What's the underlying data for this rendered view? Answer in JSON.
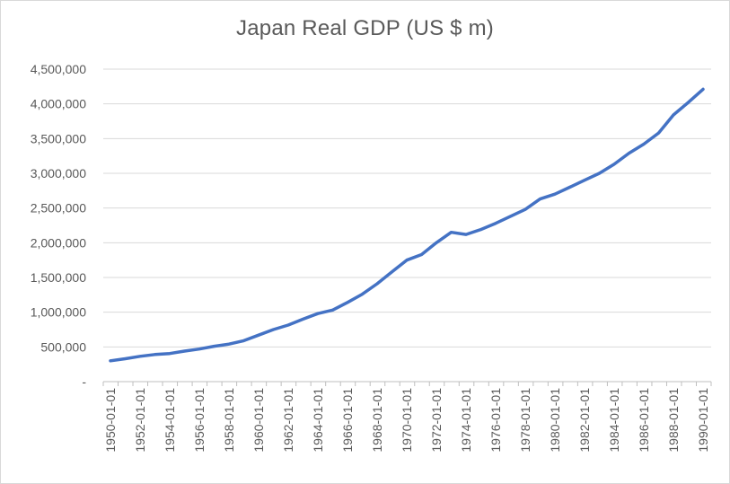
{
  "chart_data": {
    "type": "line",
    "title": "Japan Real GDP (US $ m)",
    "xlabel": "",
    "ylabel": "",
    "ylim": [
      0,
      4500000
    ],
    "grid": true,
    "legend": "none",
    "line_color": "#4472c4",
    "grid_color": "#d9d9d9",
    "axis_color": "#bfbfbf",
    "text_color": "#595959",
    "y_ticks": [
      {
        "value": 0,
        "label": "-"
      },
      {
        "value": 500000,
        "label": "500,000"
      },
      {
        "value": 1000000,
        "label": "1,000,000"
      },
      {
        "value": 1500000,
        "label": "1,500,000"
      },
      {
        "value": 2000000,
        "label": "2,000,000"
      },
      {
        "value": 2500000,
        "label": "2,500,000"
      },
      {
        "value": 3000000,
        "label": "3,000,000"
      },
      {
        "value": 3500000,
        "label": "3,500,000"
      },
      {
        "value": 4000000,
        "label": "4,000,000"
      },
      {
        "value": 4500000,
        "label": "4,500,000"
      }
    ],
    "x_tick_labels": [
      "1950-01-01",
      "1952-01-01",
      "1954-01-01",
      "1956-01-01",
      "1958-01-01",
      "1960-01-01",
      "1962-01-01",
      "1964-01-01",
      "1966-01-01",
      "1968-01-01",
      "1970-01-01",
      "1972-01-01",
      "1974-01-01",
      "1976-01-01",
      "1978-01-01",
      "1980-01-01",
      "1982-01-01",
      "1984-01-01",
      "1986-01-01",
      "1988-01-01",
      "1990-01-01"
    ],
    "series": [
      {
        "name": "Japan Real GDP",
        "x": [
          1950,
          1951,
          1952,
          1953,
          1954,
          1955,
          1956,
          1957,
          1958,
          1959,
          1960,
          1961,
          1962,
          1963,
          1964,
          1965,
          1966,
          1967,
          1968,
          1969,
          1970,
          1971,
          1972,
          1973,
          1974,
          1975,
          1976,
          1977,
          1978,
          1979,
          1980,
          1981,
          1982,
          1983,
          1984,
          1985,
          1986,
          1987,
          1988,
          1989,
          1990
        ],
        "values": [
          300000,
          330000,
          365000,
          390000,
          405000,
          440000,
          470000,
          510000,
          540000,
          590000,
          670000,
          750000,
          815000,
          900000,
          980000,
          1030000,
          1140000,
          1260000,
          1410000,
          1580000,
          1750000,
          1830000,
          2000000,
          2150000,
          2120000,
          2190000,
          2280000,
          2380000,
          2480000,
          2630000,
          2700000,
          2800000,
          2900000,
          3000000,
          3130000,
          3290000,
          3420000,
          3580000,
          3840000,
          4020000,
          4210000
        ]
      }
    ]
  }
}
